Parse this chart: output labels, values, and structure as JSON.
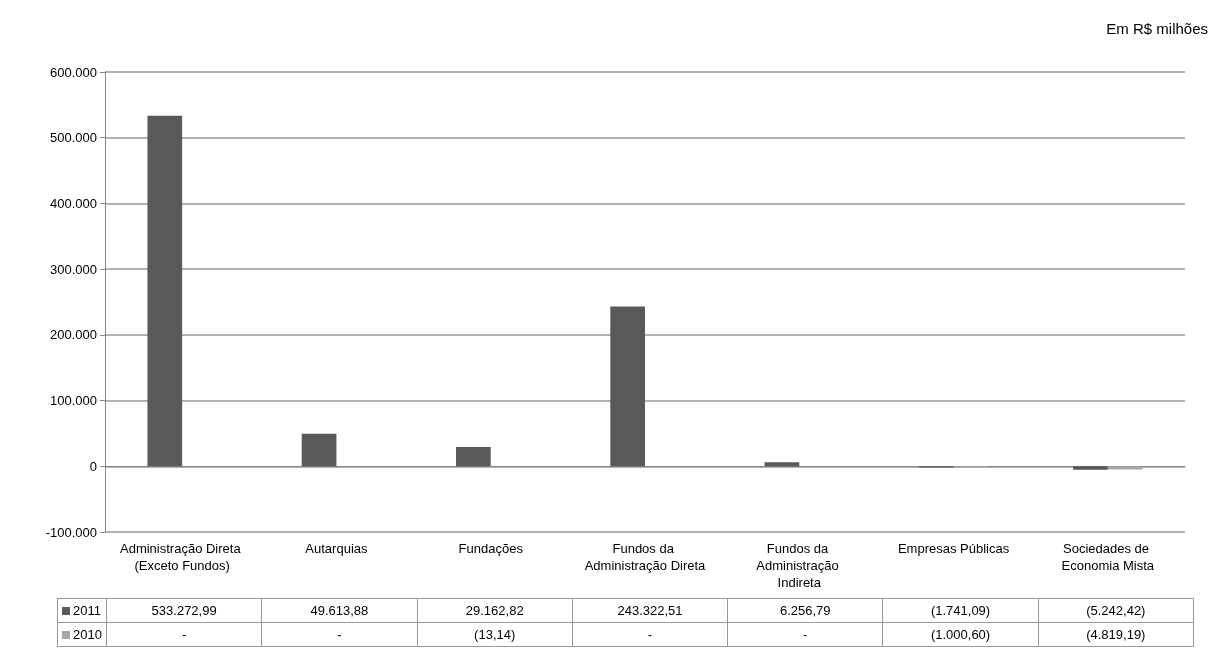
{
  "chart_data": {
    "type": "bar",
    "annotations": [
      "Em R$ milhões"
    ],
    "categories": [
      "Administração Direta (Exceto Fundos)",
      "Autarquias",
      "Fundações",
      "Fundos da Administração Direta",
      "Fundos da Administração Indireta",
      "Empresas Públicas",
      "Sociedades de Economia Mista"
    ],
    "series": [
      {
        "name": "2011",
        "color": "#595959",
        "values": [
          533272.99,
          49613.88,
          29162.82,
          243322.51,
          6256.79,
          -1741.09,
          -5242.42
        ],
        "value_labels": [
          "533.272,99",
          "49.613,88",
          "29.162,82",
          "243.322,51",
          "6.256,79",
          "(1.741,09)",
          "(5.242,42)"
        ]
      },
      {
        "name": "2010",
        "color": "#a6a6a6",
        "values": [
          0,
          0,
          -13.14,
          0,
          0,
          -1000.6,
          -4819.19
        ],
        "value_labels": [
          "-",
          "-",
          "(13,14)",
          "-",
          "-",
          "(1.000,60)",
          "(4.819,19)"
        ]
      }
    ],
    "ylim": [
      -100000,
      600000
    ],
    "yticks": [
      {
        "value": -100000,
        "label": "-100.000"
      },
      0,
      {
        "value": 100000,
        "label": "100.000"
      },
      {
        "value": 200000,
        "label": "200.000"
      },
      {
        "value": 300000,
        "label": "300.000"
      },
      {
        "value": 400000,
        "label": "400.000"
      },
      {
        "value": 500000,
        "label": "500.000"
      },
      {
        "value": 600000,
        "label": "600.000"
      }
    ],
    "grid": "y",
    "legend": "bottom"
  }
}
